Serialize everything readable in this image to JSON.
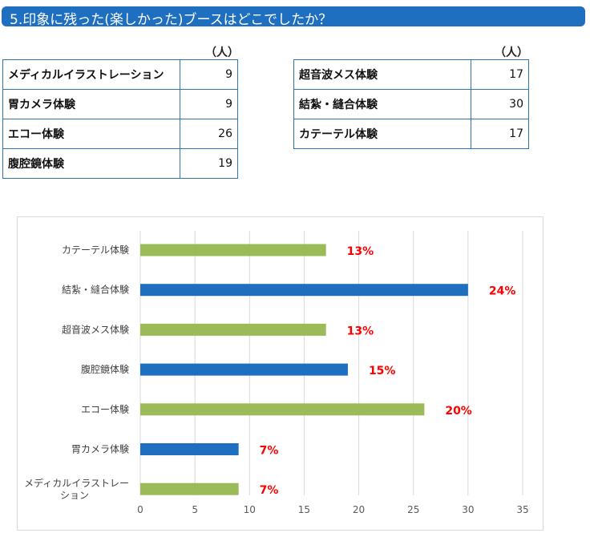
{
  "header": {
    "title": "5.印象に残った(楽しかった)ブースはどこでしたか？"
  },
  "tables": {
    "unit": "（人）",
    "left": [
      {
        "label": "メディカルイラストレーション",
        "value": "9"
      },
      {
        "label": "胃カメラ体験",
        "value": "9"
      },
      {
        "label": "エコー体験",
        "value": "26"
      },
      {
        "label": "腹腔鏡体験",
        "value": "19"
      }
    ],
    "right": [
      {
        "label": "超音波メス体験",
        "value": "17"
      },
      {
        "label": "結紮・縫合体験",
        "value": "30"
      },
      {
        "label": "カテーテル体験",
        "value": "17"
      }
    ]
  },
  "chart_data": {
    "type": "bar",
    "orientation": "horizontal",
    "categories": [
      "カテーテル体験",
      "結紮・縫合体験",
      "超音波メス体験",
      "腹腔鏡体験",
      "エコー体験",
      "胃カメラ体験",
      "メディカルイラストレーション"
    ],
    "category_lines": [
      [
        "カテーテル体験"
      ],
      [
        "結紮・縫合体験"
      ],
      [
        "超音波メス体験"
      ],
      [
        "腹腔鏡体験"
      ],
      [
        "エコー体験"
      ],
      [
        "胃カメラ体験"
      ],
      [
        "メディカルイラストレー",
        "ション"
      ]
    ],
    "values": [
      17,
      30,
      17,
      19,
      26,
      9,
      9
    ],
    "labels": [
      "13%",
      "24%",
      "13%",
      "15%",
      "20%",
      "7%",
      "7%"
    ],
    "colors": [
      "#9bbb59",
      "#1f6fc0",
      "#9bbb59",
      "#1f6fc0",
      "#9bbb59",
      "#1f6fc0",
      "#9bbb59"
    ],
    "label_color": "#ff0000",
    "xlim": [
      0,
      35
    ],
    "xticks": [
      0,
      5,
      10,
      15,
      20,
      25,
      30,
      35
    ],
    "grid": true,
    "title": "",
    "xlabel": "",
    "ylabel": ""
  }
}
